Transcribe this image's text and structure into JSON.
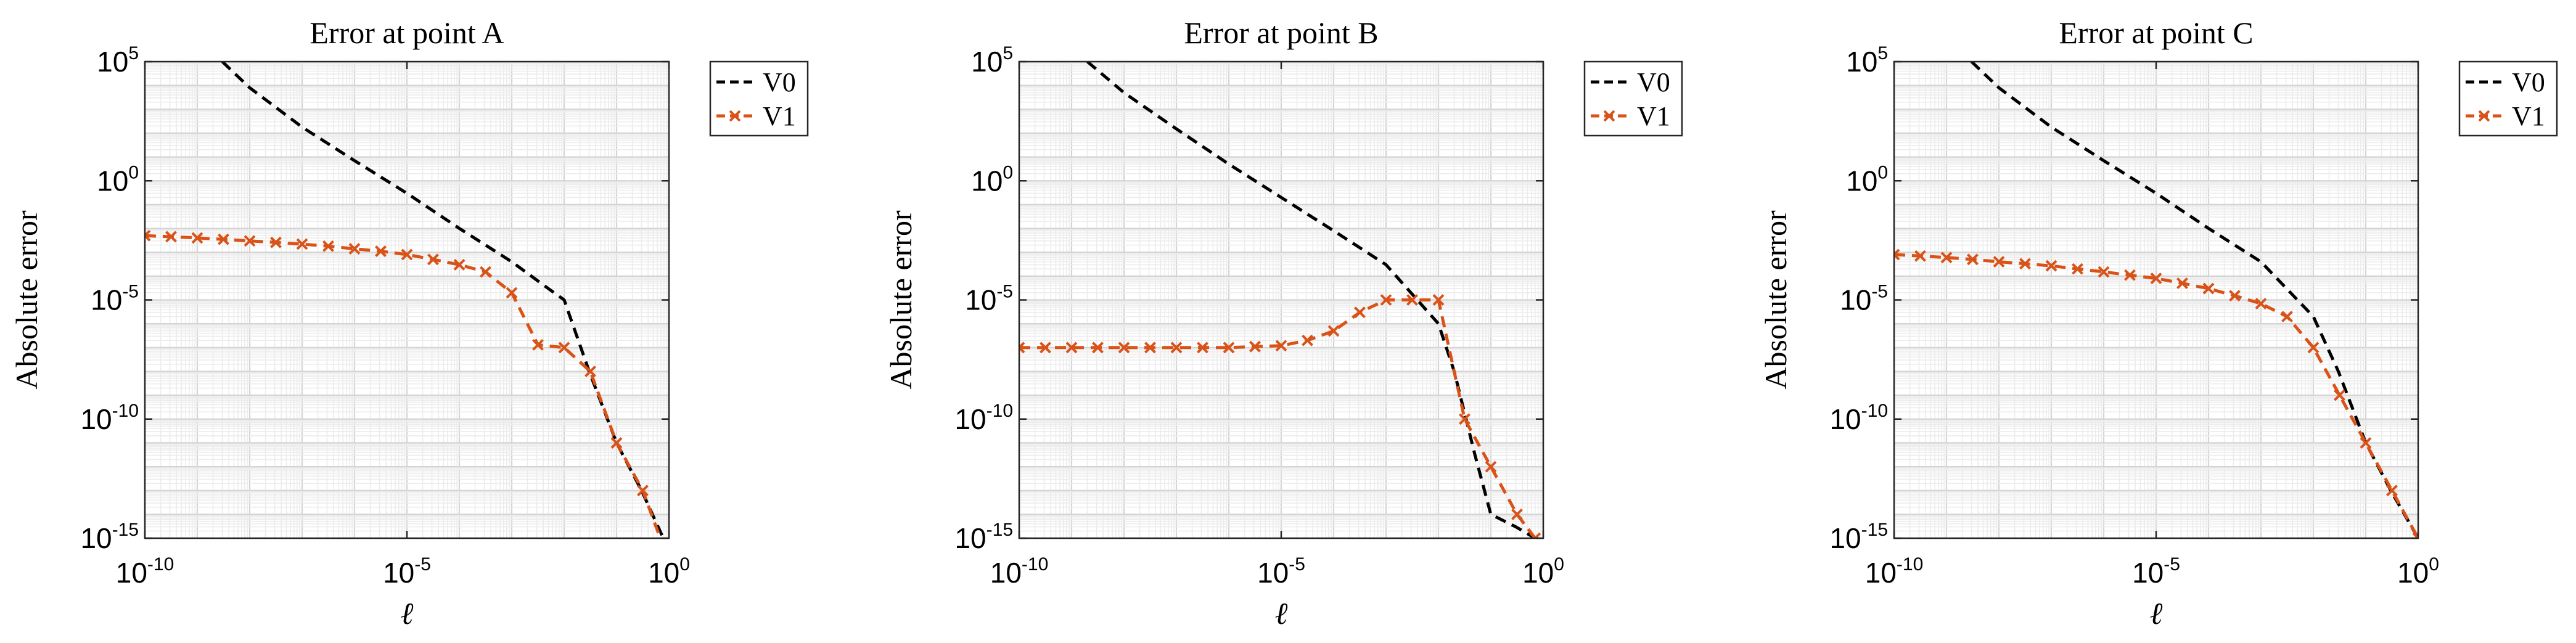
{
  "chart_data": [
    {
      "type": "line",
      "title": "Error at point A",
      "xlabel": "ℓ",
      "ylabel": "Absolute error",
      "xscale": "log",
      "yscale": "log",
      "xlim": [
        1e-10,
        1
      ],
      "ylim": [
        1e-15,
        100000.0
      ],
      "xticks": [
        {
          "base": "10",
          "exp": "-10"
        },
        {
          "base": "10",
          "exp": "-5"
        },
        {
          "base": "10",
          "exp": "0"
        }
      ],
      "yticks": [
        {
          "base": "10",
          "exp": "5"
        },
        {
          "base": "10",
          "exp": "0"
        },
        {
          "base": "10",
          "exp": "-5"
        },
        {
          "base": "10",
          "exp": "-10"
        },
        {
          "base": "10",
          "exp": "-15"
        }
      ],
      "grid": true,
      "legend_position": "outside-top-right",
      "series": [
        {
          "name": "V0",
          "color": "#000000",
          "style": "dashed",
          "marker": "none",
          "x": [
            3e-09,
            1e-08,
            1e-07,
            1e-06,
            1e-05,
            0.0001,
            0.001,
            0.005,
            0.01,
            0.03,
            0.1,
            0.3,
            1
          ],
          "y": [
            100000.0,
            8000,
            180,
            7,
            0.3,
            0.01,
            0.0004,
            3e-05,
            1e-05,
            1e-08,
            1e-11,
            1e-13,
            3e-16
          ]
        },
        {
          "name": "V1",
          "color": "#D95319",
          "style": "dashed",
          "marker": "x",
          "x": [
            1e-10,
            3.16e-10,
            1e-09,
            3.16e-09,
            1e-08,
            3.16e-08,
            1e-07,
            3.16e-07,
            1e-06,
            3.16e-06,
            1e-05,
            3.16e-05,
            0.0001,
            0.000316,
            0.001,
            0.00316,
            0.01,
            0.0316,
            0.1,
            0.316,
            1
          ],
          "y": [
            0.005,
            0.0045,
            0.004,
            0.0035,
            0.003,
            0.0026,
            0.0022,
            0.0018,
            0.0014,
            0.0011,
            0.0008,
            0.0005,
            0.0003,
            0.00015,
            2e-05,
            1.3e-07,
            1e-07,
            1e-08,
            1e-11,
            1e-13,
            1e-16
          ]
        }
      ]
    },
    {
      "type": "line",
      "title": "Error at point B",
      "xlabel": "ℓ",
      "ylabel": "Absolute error",
      "xscale": "log",
      "yscale": "log",
      "xlim": [
        1e-10,
        1
      ],
      "ylim": [
        1e-15,
        100000.0
      ],
      "xticks": [
        {
          "base": "10",
          "exp": "-10"
        },
        {
          "base": "10",
          "exp": "-5"
        },
        {
          "base": "10",
          "exp": "0"
        }
      ],
      "yticks": [
        {
          "base": "10",
          "exp": "5"
        },
        {
          "base": "10",
          "exp": "0"
        },
        {
          "base": "10",
          "exp": "-5"
        },
        {
          "base": "10",
          "exp": "-10"
        },
        {
          "base": "10",
          "exp": "-15"
        }
      ],
      "grid": true,
      "legend_position": "outside-top-right",
      "series": [
        {
          "name": "V0",
          "color": "#000000",
          "style": "dashed",
          "marker": "none",
          "x": [
            2e-09,
            1e-08,
            1e-07,
            1e-06,
            1e-05,
            0.0001,
            0.001,
            0.01,
            0.02,
            0.05,
            0.1,
            0.3,
            0.7
          ],
          "y": [
            100000.0,
            5000,
            150,
            5,
            0.2,
            0.008,
            0.0003,
            1e-06,
            1e-08,
            3e-12,
            1e-14,
            3e-15,
            1e-15
          ]
        },
        {
          "name": "V1",
          "color": "#D95319",
          "style": "dashed",
          "marker": "x",
          "x": [
            1e-10,
            3.16e-10,
            1e-09,
            3.16e-09,
            1e-08,
            3.16e-08,
            1e-07,
            3.16e-07,
            1e-06,
            3.16e-06,
            1e-05,
            3.16e-05,
            0.0001,
            0.000316,
            0.001,
            0.00316,
            0.01,
            0.0316,
            0.1,
            0.316,
            0.7
          ],
          "y": [
            1e-07,
            1e-07,
            1e-07,
            1e-07,
            1e-07,
            1e-07,
            1e-07,
            1e-07,
            1e-07,
            1.1e-07,
            1.2e-07,
            2e-07,
            5e-07,
            3e-06,
            1e-05,
            1e-05,
            1e-05,
            1e-10,
            1e-12,
            1e-14,
            1e-15
          ]
        }
      ]
    },
    {
      "type": "line",
      "title": "Error at point C",
      "xlabel": "ℓ",
      "ylabel": "Absolute error",
      "xscale": "log",
      "yscale": "log",
      "xlim": [
        1e-10,
        1
      ],
      "ylim": [
        1e-15,
        100000.0
      ],
      "xticks": [
        {
          "base": "10",
          "exp": "-10"
        },
        {
          "base": "10",
          "exp": "-5"
        },
        {
          "base": "10",
          "exp": "0"
        }
      ],
      "yticks": [
        {
          "base": "10",
          "exp": "5"
        },
        {
          "base": "10",
          "exp": "0"
        },
        {
          "base": "10",
          "exp": "-5"
        },
        {
          "base": "10",
          "exp": "-10"
        },
        {
          "base": "10",
          "exp": "-15"
        }
      ],
      "grid": true,
      "legend_position": "outside-top-right",
      "series": [
        {
          "name": "V0",
          "color": "#000000",
          "style": "dashed",
          "marker": "none",
          "x": [
            3e-09,
            1e-08,
            1e-07,
            1e-06,
            1e-05,
            0.0001,
            0.001,
            0.01,
            0.03,
            0.1,
            0.3,
            1
          ],
          "y": [
            100000.0,
            8000,
            180,
            7,
            0.3,
            0.01,
            0.0004,
            2e-06,
            1e-08,
            1e-11,
            1e-13,
            1e-15
          ]
        },
        {
          "name": "V1",
          "color": "#D95319",
          "style": "dashed",
          "marker": "x",
          "x": [
            1e-10,
            3.16e-10,
            1e-09,
            3.16e-09,
            1e-08,
            3.16e-08,
            1e-07,
            3.16e-07,
            1e-06,
            3.16e-06,
            1e-05,
            3.16e-05,
            0.0001,
            0.000316,
            0.001,
            0.00316,
            0.01,
            0.0316,
            0.1,
            0.316,
            1
          ],
          "y": [
            0.0008,
            0.0007,
            0.0006,
            0.0005,
            0.0004,
            0.00033,
            0.00027,
            0.0002,
            0.00015,
            0.00011,
            8e-05,
            5e-05,
            3e-05,
            1.5e-05,
            7e-06,
            2e-06,
            1e-07,
            1e-09,
            1e-11,
            1e-13,
            1e-15
          ]
        }
      ]
    }
  ]
}
